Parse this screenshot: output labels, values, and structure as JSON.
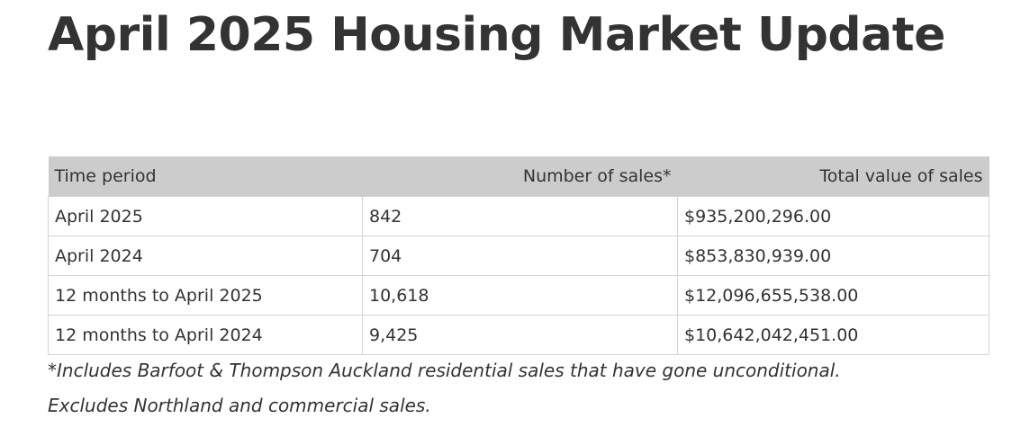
{
  "page": {
    "title": "April 2025 Housing Market Update"
  },
  "table": {
    "headers": {
      "period": "Time period",
      "count": "Number of sales*",
      "value": "Total value of sales"
    },
    "rows": [
      {
        "period": "April 2025",
        "count": "842",
        "value": "$935,200,296.00"
      },
      {
        "period": "April 2024",
        "count": "704",
        "value": "$853,830,939.00"
      },
      {
        "period": "12 months to April 2025",
        "count": "10,618",
        "value": "$12,096,655,538.00"
      },
      {
        "period": "12 months to April 2024",
        "count": "9,425",
        "value": "$10,642,042,451.00"
      }
    ]
  },
  "footnote": {
    "line1": "*Includes Barfoot & Thompson Auckland residential sales that have gone unconditional.",
    "line2": "Excludes Northland and commercial sales."
  },
  "colors": {
    "text": "#333333",
    "header_background": "#cccccc",
    "border": "#d4d4d4"
  }
}
